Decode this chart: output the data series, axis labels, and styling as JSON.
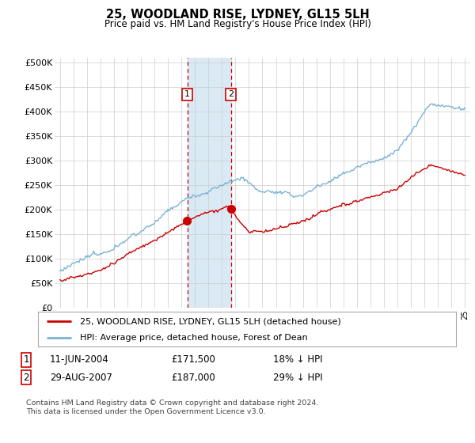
{
  "title": "25, WOODLAND RISE, LYDNEY, GL15 5LH",
  "subtitle": "Price paid vs. HM Land Registry's House Price Index (HPI)",
  "legend_line1": "25, WOODLAND RISE, LYDNEY, GL15 5LH (detached house)",
  "legend_line2": "HPI: Average price, detached house, Forest of Dean",
  "transaction1_date": "11-JUN-2004",
  "transaction1_price": "£171,500",
  "transaction1_hpi": "18% ↓ HPI",
  "transaction1_year": 2004.44,
  "transaction2_date": "29-AUG-2007",
  "transaction2_price": "£187,000",
  "transaction2_hpi": "29% ↓ HPI",
  "transaction2_year": 2007.66,
  "hpi_color": "#7ab3d4",
  "price_color": "#cc0000",
  "highlight_color": "#daeaf5",
  "ylim_min": 0,
  "ylim_max": 510000,
  "yticks": [
    0,
    50000,
    100000,
    150000,
    200000,
    250000,
    300000,
    350000,
    400000,
    450000,
    500000
  ],
  "footer": "Contains HM Land Registry data © Crown copyright and database right 2024.\nThis data is licensed under the Open Government Licence v3.0.",
  "background_color": "#ffffff"
}
